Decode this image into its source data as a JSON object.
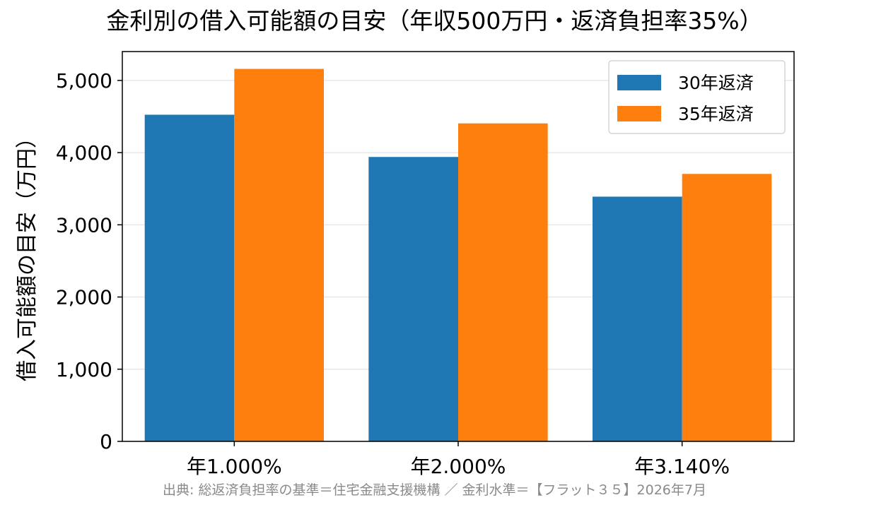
{
  "chart_data": {
    "type": "bar",
    "title": "金利別の借入可能額の目安（年収500万円・返済負担率35%）",
    "xlabel": "",
    "ylabel": "借入可能額の目安（万円）",
    "categories": [
      "年1.000%",
      "年2.000%",
      "年3.140%"
    ],
    "series": [
      {
        "name": "30年返済",
        "values": [
          4525,
          3940,
          3390
        ],
        "color": "#1f77b4"
      },
      {
        "name": "35年返済",
        "values": [
          5160,
          4405,
          3705
        ],
        "color": "#ff7f0e"
      }
    ],
    "ylim": [
      0,
      5400
    ],
    "yticks": [
      0,
      1000,
      2000,
      3000,
      4000,
      5000
    ],
    "ytick_labels": [
      "0",
      "1,000",
      "2,000",
      "3,000",
      "4,000",
      "5,000"
    ],
    "grid": "horizontal",
    "legend_position": "top-right"
  },
  "source_note": "出典: 総返済負担率の基準＝住宅金融支援機構 ／ 金利水準＝【フラット３５】2026年7月"
}
